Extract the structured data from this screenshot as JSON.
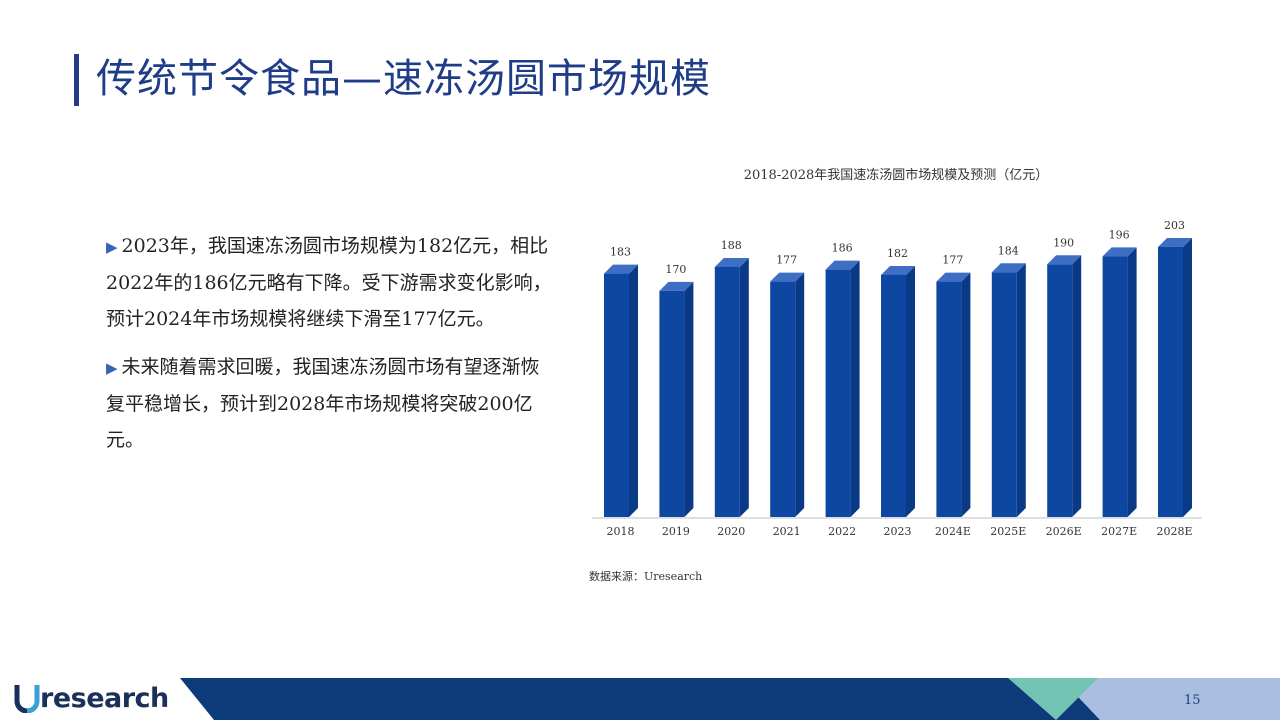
{
  "page": {
    "title": "传统节令食品—速冻汤圆市场规模",
    "page_number": "15",
    "source": "数据来源：Uresearch",
    "logo_text": "research",
    "logo_letter": "U"
  },
  "text": {
    "marker": "▶",
    "para1": "2023年，我国速冻汤圆市场规模为182亿元，相比2022年的186亿元略有下降。受下游需求变化影响，预计2024年市场规模将继续下滑至177亿元。",
    "para2": "未来随着需求回暖，我国速冻汤圆市场有望逐渐恢复平稳增长，预计到2028年市场规模将突破200亿元。"
  },
  "colors": {
    "title": "#1f3c88",
    "bar_front": "#0d47a1",
    "bar_side": "#0a3a85",
    "bar_top": "#3f6fc4",
    "footer_dark": "#0d3b7a",
    "footer_teal": "#74c4b4",
    "footer_light": "#aabfe0"
  },
  "chart_data": {
    "type": "bar",
    "title": "2018-2028年我国速冻汤圆市场规模及预测（亿元）",
    "categories": [
      "2018",
      "2019",
      "2020",
      "2021",
      "2022",
      "2023",
      "2024E",
      "2025E",
      "2026E",
      "2027E",
      "2028E"
    ],
    "values": [
      183,
      170,
      188,
      177,
      186,
      182,
      177,
      184,
      190,
      196,
      203
    ],
    "xlabel": "",
    "ylabel": "",
    "ylim": [
      0,
      210
    ],
    "grid": false,
    "legend": "none"
  }
}
